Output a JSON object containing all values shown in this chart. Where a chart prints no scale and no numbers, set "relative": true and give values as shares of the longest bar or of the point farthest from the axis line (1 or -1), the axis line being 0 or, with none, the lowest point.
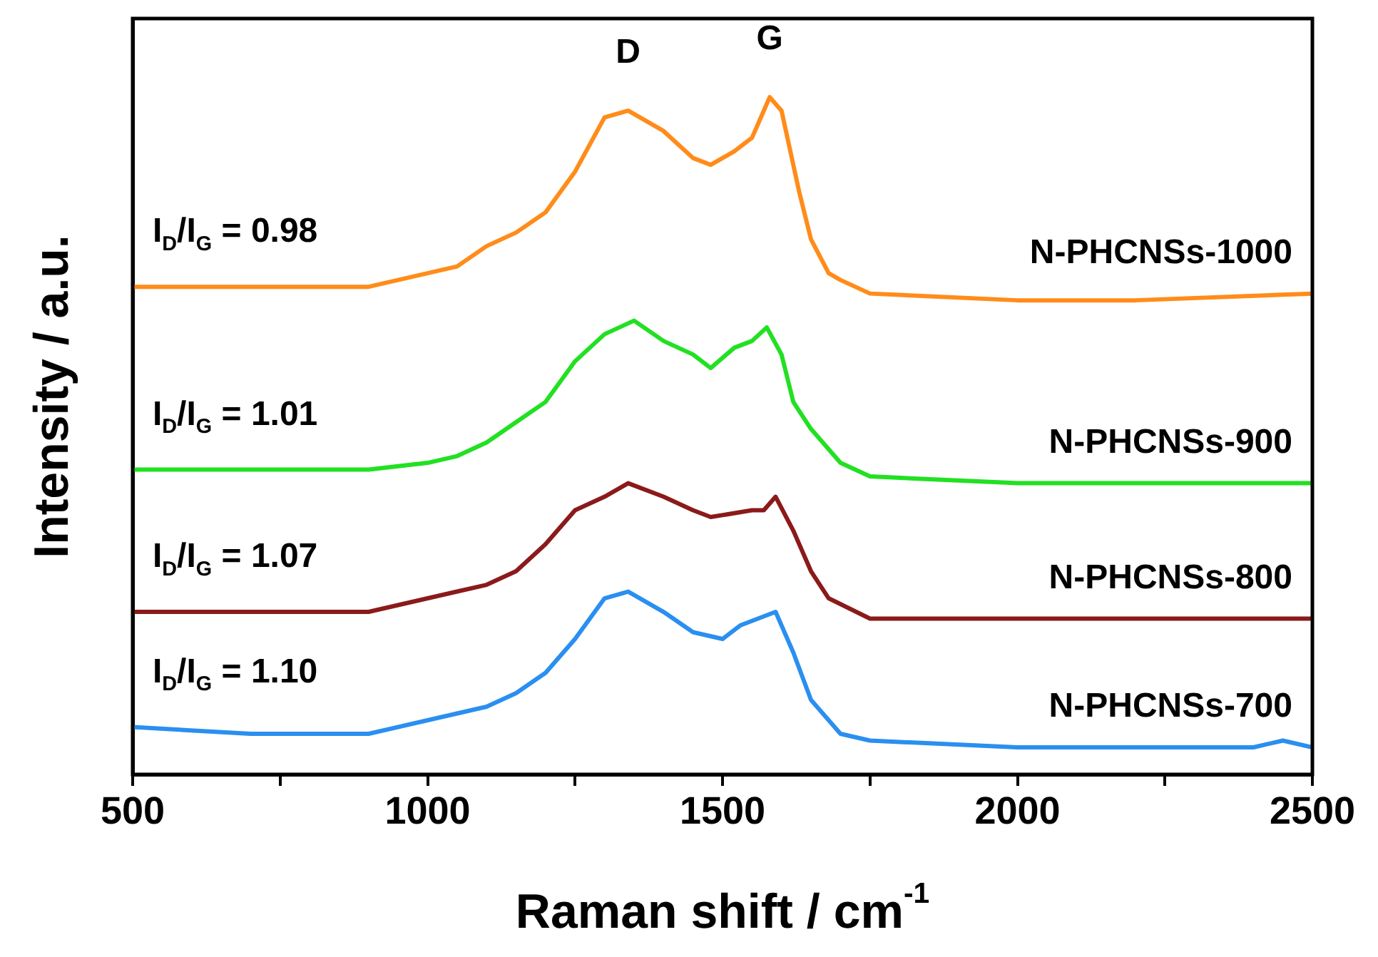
{
  "chart_data": {
    "type": "line",
    "relative": true,
    "xlabel": "Raman shift / cm$^{-1}$",
    "ylabel": "Intensity / a.u.",
    "xlim": [
      500,
      2500
    ],
    "xticks": [
      500,
      {
        "value": 750,
        "label": null
      },
      1000,
      {
        "value": 1250,
        "label": null
      },
      1500,
      {
        "value": 1750,
        "label": null
      },
      2000,
      {
        "value": 2250,
        "label": null
      },
      2500
    ],
    "grid": false,
    "legend": false,
    "marker": "none",
    "line_style": "solid",
    "x": [
      500,
      700,
      900,
      1000,
      1050,
      1100,
      1150,
      1200,
      1250,
      1300,
      1340,
      1400,
      1450,
      1480,
      1520,
      1550,
      1580,
      1600,
      1630,
      1650,
      1680,
      1700,
      1750,
      2000,
      2200,
      2500
    ],
    "series": [
      {
        "name": "N-PHCNSs-1000",
        "color": "#ff8c1a",
        "values": [
          0.72,
          0.72,
          0.72,
          0.74,
          0.75,
          0.78,
          0.8,
          0.83,
          0.89,
          0.97,
          0.98,
          0.95,
          0.91,
          0.9,
          0.92,
          0.94,
          1,
          0.98,
          0.86,
          0.79,
          0.74,
          0.73,
          0.71,
          0.7,
          0.7,
          0.71
        ]
      },
      {
        "name": "N-PHCNSs-900",
        "color": "#22e022",
        "x": [
          500,
          700,
          900,
          1000,
          1050,
          1100,
          1150,
          1200,
          1250,
          1300,
          1350,
          1400,
          1450,
          1480,
          1520,
          1550,
          1575,
          1600,
          1620,
          1650,
          1700,
          1750,
          2000,
          2200,
          2500
        ],
        "values": [
          0.45,
          0.45,
          0.45,
          0.46,
          0.47,
          0.49,
          0.52,
          0.55,
          0.61,
          0.65,
          0.67,
          0.64,
          0.62,
          0.6,
          0.63,
          0.64,
          0.66,
          0.62,
          0.55,
          0.51,
          0.46,
          0.44,
          0.43,
          0.43,
          0.43
        ]
      },
      {
        "name": "N-PHCNSs-800",
        "color": "#8b1a1a",
        "x": [
          500,
          700,
          900,
          1000,
          1050,
          1100,
          1150,
          1200,
          1250,
          1300,
          1340,
          1400,
          1450,
          1480,
          1550,
          1570,
          1590,
          1620,
          1650,
          1680,
          1750,
          2000,
          2500
        ],
        "values": [
          0.24,
          0.24,
          0.24,
          0.26,
          0.27,
          0.28,
          0.3,
          0.34,
          0.39,
          0.41,
          0.43,
          0.41,
          0.39,
          0.38,
          0.39,
          0.39,
          0.41,
          0.36,
          0.3,
          0.26,
          0.23,
          0.23,
          0.23
        ]
      },
      {
        "name": "N-PHCNSs-700",
        "color": "#2a8ff0",
        "x": [
          500,
          700,
          900,
          1000,
          1100,
          1150,
          1200,
          1250,
          1300,
          1340,
          1400,
          1450,
          1500,
          1530,
          1560,
          1590,
          1620,
          1650,
          1700,
          1750,
          2000,
          2400,
          2450,
          2500
        ],
        "values": [
          0.07,
          0.06,
          0.06,
          0.08,
          0.1,
          0.12,
          0.15,
          0.2,
          0.26,
          0.27,
          0.24,
          0.21,
          0.2,
          0.22,
          0.23,
          0.24,
          0.18,
          0.11,
          0.06,
          0.05,
          0.04,
          0.04,
          0.05,
          0.04
        ]
      }
    ],
    "annotations": [
      "D",
      "G",
      "I$_{D}$/I$_{G}$ = 0.98",
      "I$_{D}$/I$_{G}$ = 1.01",
      "I$_{D}$/I$_{G}$ = 1.07",
      "I$_{D}$/I$_{G}$ = 1.10"
    ]
  }
}
